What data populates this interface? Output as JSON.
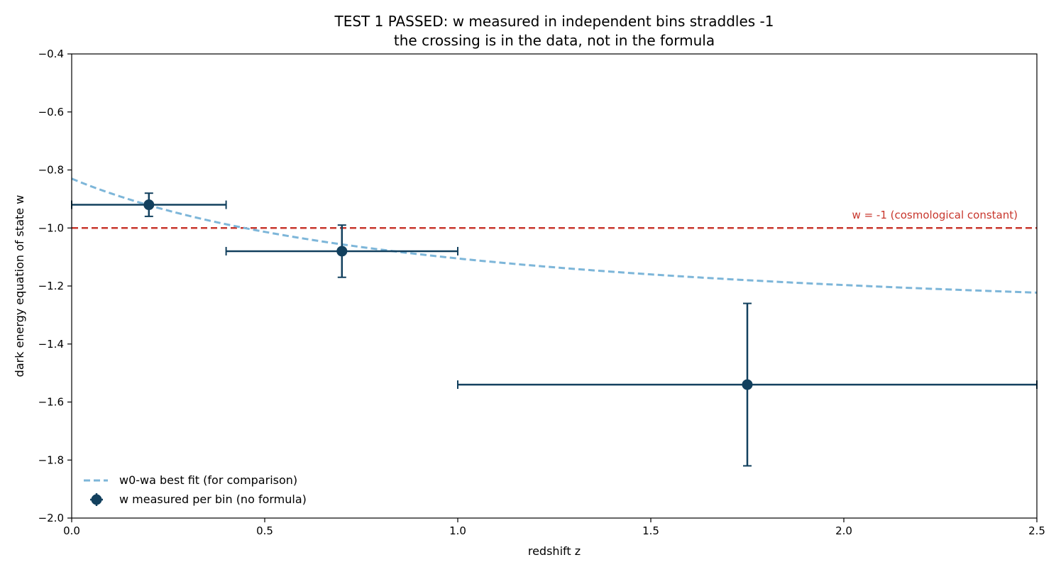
{
  "chart_data": {
    "type": "scatter",
    "title": "TEST 1 PASSED: w measured in independent bins straddles -1",
    "subtitle": "the crossing is in the data, not in the formula",
    "xlabel": "redshift z",
    "ylabel": "dark energy equation of state  w",
    "xlim": [
      0.0,
      2.5
    ],
    "ylim": [
      -2.0,
      -0.4
    ],
    "x_ticks": [
      0.0,
      0.5,
      1.0,
      1.5,
      2.0,
      2.5
    ],
    "x_tick_labels": [
      "0.0",
      "0.5",
      "1.0",
      "1.5",
      "2.0",
      "2.5"
    ],
    "y_ticks": [
      -2.0,
      -1.8,
      -1.6,
      -1.4,
      -1.2,
      -1.0,
      -0.8,
      -0.6,
      -0.4
    ],
    "y_tick_labels": [
      "−2.0",
      "−1.8",
      "−1.6",
      "−1.4",
      "−1.2",
      "−1.0",
      "−0.8",
      "−0.6",
      "−0.4"
    ],
    "grid": false,
    "legend_position": "lower-left",
    "reference_line": {
      "y": -1.0,
      "label": "w = -1 (cosmological constant)",
      "color": "#c8372d",
      "style": "dashed"
    },
    "series": [
      {
        "name": "w0-wa best fit (for comparison)",
        "kind": "line",
        "style": "dashed",
        "color": "#7db6d9",
        "w0": -0.83,
        "wa": -0.55,
        "x_range": [
          0.0,
          2.5
        ]
      },
      {
        "name": "w measured per bin (no formula)",
        "kind": "errorbar",
        "color": "#12405e",
        "points": [
          {
            "x": 0.2,
            "y": -0.92,
            "x_lo": 0.0,
            "x_hi": 0.4,
            "y_lo": -0.96,
            "y_hi": -0.88
          },
          {
            "x": 0.7,
            "y": -1.08,
            "x_lo": 0.4,
            "x_hi": 1.0,
            "y_lo": -1.17,
            "y_hi": -0.99
          },
          {
            "x": 1.75,
            "y": -1.54,
            "x_lo": 1.0,
            "x_hi": 2.5,
            "y_lo": -1.82,
            "y_hi": -1.26
          }
        ]
      }
    ]
  }
}
